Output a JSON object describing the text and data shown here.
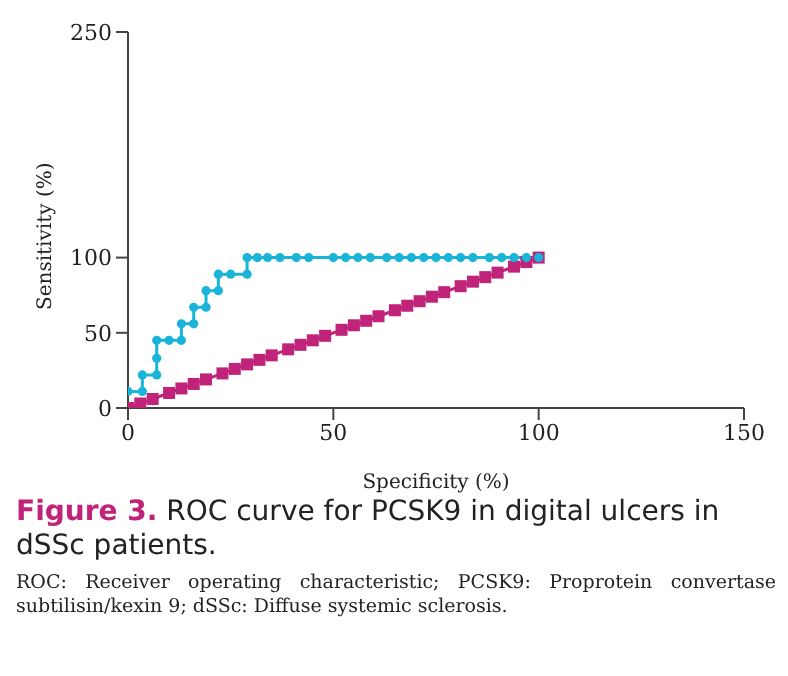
{
  "chart_data": {
    "type": "line",
    "xlabel": "Specificity (%)",
    "ylabel": "Sensitivity (%)",
    "xlim": [
      0,
      150
    ],
    "xticks": [
      0,
      50,
      100,
      150
    ],
    "ylim": [
      0,
      250
    ],
    "yticks": [
      0,
      50,
      100,
      250
    ],
    "legend": false,
    "series": [
      {
        "color": "#1ab4d8",
        "marker": "circle",
        "x": [
          0,
          3.5,
          3.5,
          7,
          7,
          7,
          10,
          13,
          13,
          16,
          16,
          19,
          19,
          22,
          22,
          25,
          29,
          29,
          31.5,
          34,
          37,
          41,
          44,
          50,
          53,
          56,
          59,
          63,
          66,
          69,
          72,
          75,
          78,
          81,
          84,
          88,
          91,
          94,
          97,
          100
        ],
        "values": [
          11,
          11,
          22,
          22,
          33,
          45,
          45,
          45,
          56,
          56,
          67,
          67,
          78,
          78,
          89,
          89,
          89,
          100,
          100,
          100,
          100,
          100,
          100,
          100,
          100,
          100,
          100,
          100,
          100,
          100,
          100,
          100,
          100,
          100,
          100,
          100,
          100,
          100,
          100,
          100
        ]
      },
      {
        "color": "#c0237a",
        "marker": "square",
        "x": [
          0,
          3,
          6,
          10,
          13,
          16,
          19,
          23,
          26,
          29,
          32,
          35,
          39,
          42,
          45,
          48,
          52,
          55,
          58,
          61,
          65,
          68,
          71,
          74,
          77,
          81,
          84,
          87,
          90,
          94,
          97,
          100
        ],
        "values": [
          0,
          3,
          6,
          10,
          13,
          16,
          19,
          23,
          26,
          29,
          32,
          35,
          39,
          42,
          45,
          48,
          52,
          55,
          58,
          61,
          65,
          68,
          71,
          74,
          77,
          81,
          84,
          87,
          90,
          94,
          97,
          100
        ]
      }
    ],
    "annotations": [
      "Figure 3.",
      "ROC curve for PCSK9 in digital ulcers in dSSc patients.",
      "ROC: Receiver operating characteristic; PCSK9: Proprotein convertase subtilisin/kexin 9; dSSc: Diffuse systemic sclerosis."
    ]
  }
}
